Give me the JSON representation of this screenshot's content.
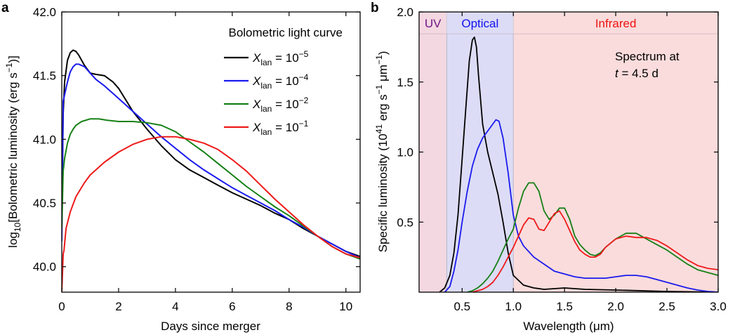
{
  "chart_data": [
    {
      "panel_label": "a",
      "type": "line",
      "title": "Bolometric light curve",
      "xlabel": "Days since merger",
      "ylabel": {
        "pre": "log",
        "sub": "10",
        "mid": "[Bolometric luminosity (erg s",
        "sup": "−1",
        "post": ")]"
      },
      "xlim": [
        0,
        10.5
      ],
      "ylim": [
        39.8,
        42.0
      ],
      "xticks": [
        0,
        2,
        4,
        6,
        8,
        10
      ],
      "yticks": [
        40.0,
        40.5,
        41.0,
        41.5,
        42.0
      ],
      "ytick_labels": [
        "40.0",
        "40.5",
        "41.0",
        "41.5",
        "42.0"
      ],
      "legend_position": "top-right",
      "series": [
        {
          "symbol": "X",
          "sub": "lan",
          "eq": " = 10",
          "exp": "−5",
          "color": "#000000",
          "x": [
            0.0,
            0.05,
            0.1,
            0.2,
            0.3,
            0.4,
            0.5,
            0.6,
            0.8,
            1.0,
            1.2,
            1.5,
            1.8,
            2.0,
            2.5,
            3.0,
            3.5,
            4.0,
            4.5,
            5.0,
            5.5,
            6.0,
            6.5,
            7.0,
            7.5,
            8.0,
            8.5,
            9.0,
            9.5,
            10.0,
            10.5
          ],
          "y": [
            40.3,
            41.2,
            41.45,
            41.62,
            41.68,
            41.7,
            41.69,
            41.66,
            41.58,
            41.52,
            41.51,
            41.5,
            41.45,
            41.4,
            41.22,
            41.08,
            40.95,
            40.84,
            40.76,
            40.7,
            40.64,
            40.58,
            40.53,
            40.48,
            40.42,
            40.37,
            40.3,
            40.24,
            40.18,
            40.12,
            40.08
          ]
        },
        {
          "symbol": "X",
          "sub": "lan",
          "eq": " = 10",
          "exp": "−4",
          "color": "#1a1aee",
          "x": [
            0.0,
            0.05,
            0.1,
            0.2,
            0.3,
            0.4,
            0.5,
            0.6,
            0.8,
            1.0,
            1.2,
            1.5,
            2.0,
            2.5,
            3.0,
            3.5,
            4.0,
            4.5,
            5.0,
            5.5,
            6.0,
            6.5,
            7.0,
            7.5,
            8.0,
            8.5,
            9.0,
            9.5,
            10.0,
            10.5
          ],
          "y": [
            40.2,
            41.3,
            41.35,
            41.45,
            41.53,
            41.57,
            41.59,
            41.59,
            41.57,
            41.52,
            41.47,
            41.42,
            41.32,
            41.22,
            41.12,
            41.02,
            40.93,
            40.84,
            40.76,
            40.69,
            40.62,
            40.56,
            40.5,
            40.44,
            40.37,
            40.31,
            40.24,
            40.18,
            40.12,
            40.07
          ]
        },
        {
          "symbol": "X",
          "sub": "lan",
          "eq": " = 10",
          "exp": "−2",
          "color": "#168016",
          "x": [
            0.0,
            0.05,
            0.1,
            0.2,
            0.3,
            0.4,
            0.5,
            0.7,
            1.0,
            1.3,
            1.6,
            2.0,
            2.5,
            3.0,
            3.5,
            4.0,
            4.5,
            5.0,
            5.5,
            6.0,
            6.5,
            7.0,
            7.5,
            8.0,
            8.5,
            9.0,
            9.5,
            10.0,
            10.5
          ],
          "y": [
            40.3,
            40.75,
            40.85,
            40.97,
            41.04,
            41.08,
            41.11,
            41.14,
            41.16,
            41.16,
            41.15,
            41.14,
            41.14,
            41.13,
            41.11,
            41.06,
            40.98,
            40.9,
            40.81,
            40.72,
            40.63,
            40.55,
            40.47,
            40.4,
            40.32,
            40.24,
            40.16,
            40.1,
            40.06
          ]
        },
        {
          "symbol": "X",
          "sub": "lan",
          "eq": " = 10",
          "exp": "−1",
          "color": "#ee1a1a",
          "x": [
            0.0,
            0.05,
            0.08,
            0.15,
            0.3,
            0.5,
            0.8,
            1.0,
            1.5,
            2.0,
            2.5,
            3.0,
            3.5,
            4.0,
            4.5,
            5.0,
            5.5,
            6.0,
            6.5,
            7.0,
            7.5,
            8.0,
            8.5,
            9.0,
            9.5,
            10.0,
            10.5
          ],
          "y": [
            39.8,
            40.1,
            40.13,
            40.3,
            40.43,
            40.55,
            40.66,
            40.72,
            40.82,
            40.9,
            40.96,
            41.0,
            41.02,
            41.02,
            41.0,
            40.97,
            40.92,
            40.84,
            40.75,
            40.64,
            40.53,
            40.43,
            40.33,
            40.24,
            40.16,
            40.1,
            40.07
          ]
        }
      ]
    },
    {
      "panel_label": "b",
      "type": "line",
      "annotation": {
        "line1": "Spectrum at",
        "line2_var": "t",
        "line2_rest": " = 4.5 d"
      },
      "xlabel": "Wavelength (μm)",
      "ylabel": {
        "pre": "Specific luminosity (10",
        "sup1": "41",
        "mid": " erg s",
        "sup2": "−1",
        "mid2": " μm",
        "sup3": "−1",
        "post": ")"
      },
      "xlim": [
        0.08,
        3.0
      ],
      "ylim": [
        0.0,
        2.0
      ],
      "xticks": [
        0.5,
        1.0,
        1.5,
        2.0,
        2.5,
        3.0
      ],
      "xtick_labels": [
        "0.5",
        "1.0",
        "1.5",
        "2.0",
        "2.5",
        "3.0"
      ],
      "yticks": [
        0.5,
        1.0,
        1.5,
        2.0
      ],
      "ytick_labels": [
        "0.5",
        "1.0",
        "1.5",
        "2.0"
      ],
      "bands": [
        {
          "label": "UV",
          "x0": 0.08,
          "x1": 0.35,
          "fill": "#f3d8e2",
          "text_color": "#7a1f8a"
        },
        {
          "label": "Optical",
          "x0": 0.35,
          "x1": 1.0,
          "fill": "#dcdcf6",
          "text_color": "#1a1aee"
        },
        {
          "label": "Infrared",
          "x0": 1.0,
          "x1": 3.0,
          "fill": "#fbdcdc",
          "text_color": "#ee1a1a"
        }
      ],
      "series": [
        {
          "color": "#000000",
          "x": [
            0.28,
            0.33,
            0.38,
            0.42,
            0.46,
            0.5,
            0.54,
            0.57,
            0.6,
            0.62,
            0.64,
            0.66,
            0.7,
            0.75,
            0.8,
            0.85,
            0.9,
            0.95,
            1.0,
            1.1,
            1.2,
            1.3,
            1.5,
            1.7,
            2.0,
            2.5,
            3.0
          ],
          "y": [
            0.0,
            0.03,
            0.12,
            0.28,
            0.55,
            0.95,
            1.35,
            1.65,
            1.8,
            1.82,
            1.75,
            1.55,
            1.2,
            1.0,
            0.85,
            0.7,
            0.5,
            0.28,
            0.12,
            0.05,
            0.03,
            0.02,
            0.03,
            0.02,
            0.015,
            0.005,
            0.0
          ]
        },
        {
          "color": "#1a1aee",
          "x": [
            0.33,
            0.38,
            0.42,
            0.46,
            0.5,
            0.55,
            0.6,
            0.65,
            0.7,
            0.75,
            0.8,
            0.83,
            0.86,
            0.9,
            0.95,
            1.0,
            1.05,
            1.1,
            1.2,
            1.3,
            1.4,
            1.5,
            1.6,
            1.7,
            1.8,
            1.9,
            2.0,
            2.1,
            2.2,
            2.3,
            2.4,
            2.5,
            2.6,
            2.7,
            2.8,
            2.9,
            3.0
          ],
          "y": [
            0.0,
            0.04,
            0.15,
            0.3,
            0.5,
            0.72,
            0.9,
            1.02,
            1.1,
            1.15,
            1.2,
            1.23,
            1.22,
            1.1,
            0.85,
            0.55,
            0.4,
            0.33,
            0.25,
            0.2,
            0.15,
            0.13,
            0.11,
            0.1,
            0.1,
            0.1,
            0.11,
            0.12,
            0.12,
            0.11,
            0.09,
            0.07,
            0.05,
            0.03,
            0.015,
            0.005,
            0.0
          ]
        },
        {
          "color": "#168016",
          "x": [
            0.55,
            0.6,
            0.65,
            0.7,
            0.75,
            0.8,
            0.85,
            0.9,
            0.95,
            1.0,
            1.05,
            1.1,
            1.15,
            1.2,
            1.25,
            1.3,
            1.35,
            1.4,
            1.45,
            1.5,
            1.55,
            1.6,
            1.65,
            1.7,
            1.75,
            1.8,
            1.85,
            1.9,
            2.0,
            2.1,
            2.2,
            2.3,
            2.4,
            2.5,
            2.6,
            2.7,
            2.8,
            2.9,
            3.0
          ],
          "y": [
            0.0,
            0.01,
            0.03,
            0.06,
            0.1,
            0.15,
            0.22,
            0.3,
            0.38,
            0.45,
            0.6,
            0.72,
            0.78,
            0.78,
            0.72,
            0.58,
            0.52,
            0.55,
            0.6,
            0.6,
            0.52,
            0.4,
            0.34,
            0.3,
            0.27,
            0.26,
            0.28,
            0.32,
            0.38,
            0.42,
            0.42,
            0.38,
            0.34,
            0.3,
            0.25,
            0.2,
            0.16,
            0.14,
            0.12
          ]
        },
        {
          "color": "#ee1a1a",
          "x": [
            0.6,
            0.65,
            0.7,
            0.75,
            0.8,
            0.85,
            0.9,
            0.95,
            1.0,
            1.05,
            1.1,
            1.15,
            1.2,
            1.25,
            1.3,
            1.35,
            1.4,
            1.45,
            1.5,
            1.55,
            1.6,
            1.65,
            1.7,
            1.75,
            1.8,
            1.85,
            1.9,
            2.0,
            2.1,
            2.2,
            2.3,
            2.4,
            2.5,
            2.6,
            2.7,
            2.8,
            2.9,
            3.0
          ],
          "y": [
            0.0,
            0.01,
            0.02,
            0.04,
            0.07,
            0.12,
            0.18,
            0.25,
            0.32,
            0.4,
            0.48,
            0.53,
            0.52,
            0.45,
            0.44,
            0.5,
            0.56,
            0.58,
            0.52,
            0.44,
            0.36,
            0.3,
            0.27,
            0.25,
            0.25,
            0.27,
            0.32,
            0.38,
            0.4,
            0.39,
            0.39,
            0.37,
            0.33,
            0.28,
            0.23,
            0.19,
            0.17,
            0.16
          ]
        }
      ]
    }
  ]
}
